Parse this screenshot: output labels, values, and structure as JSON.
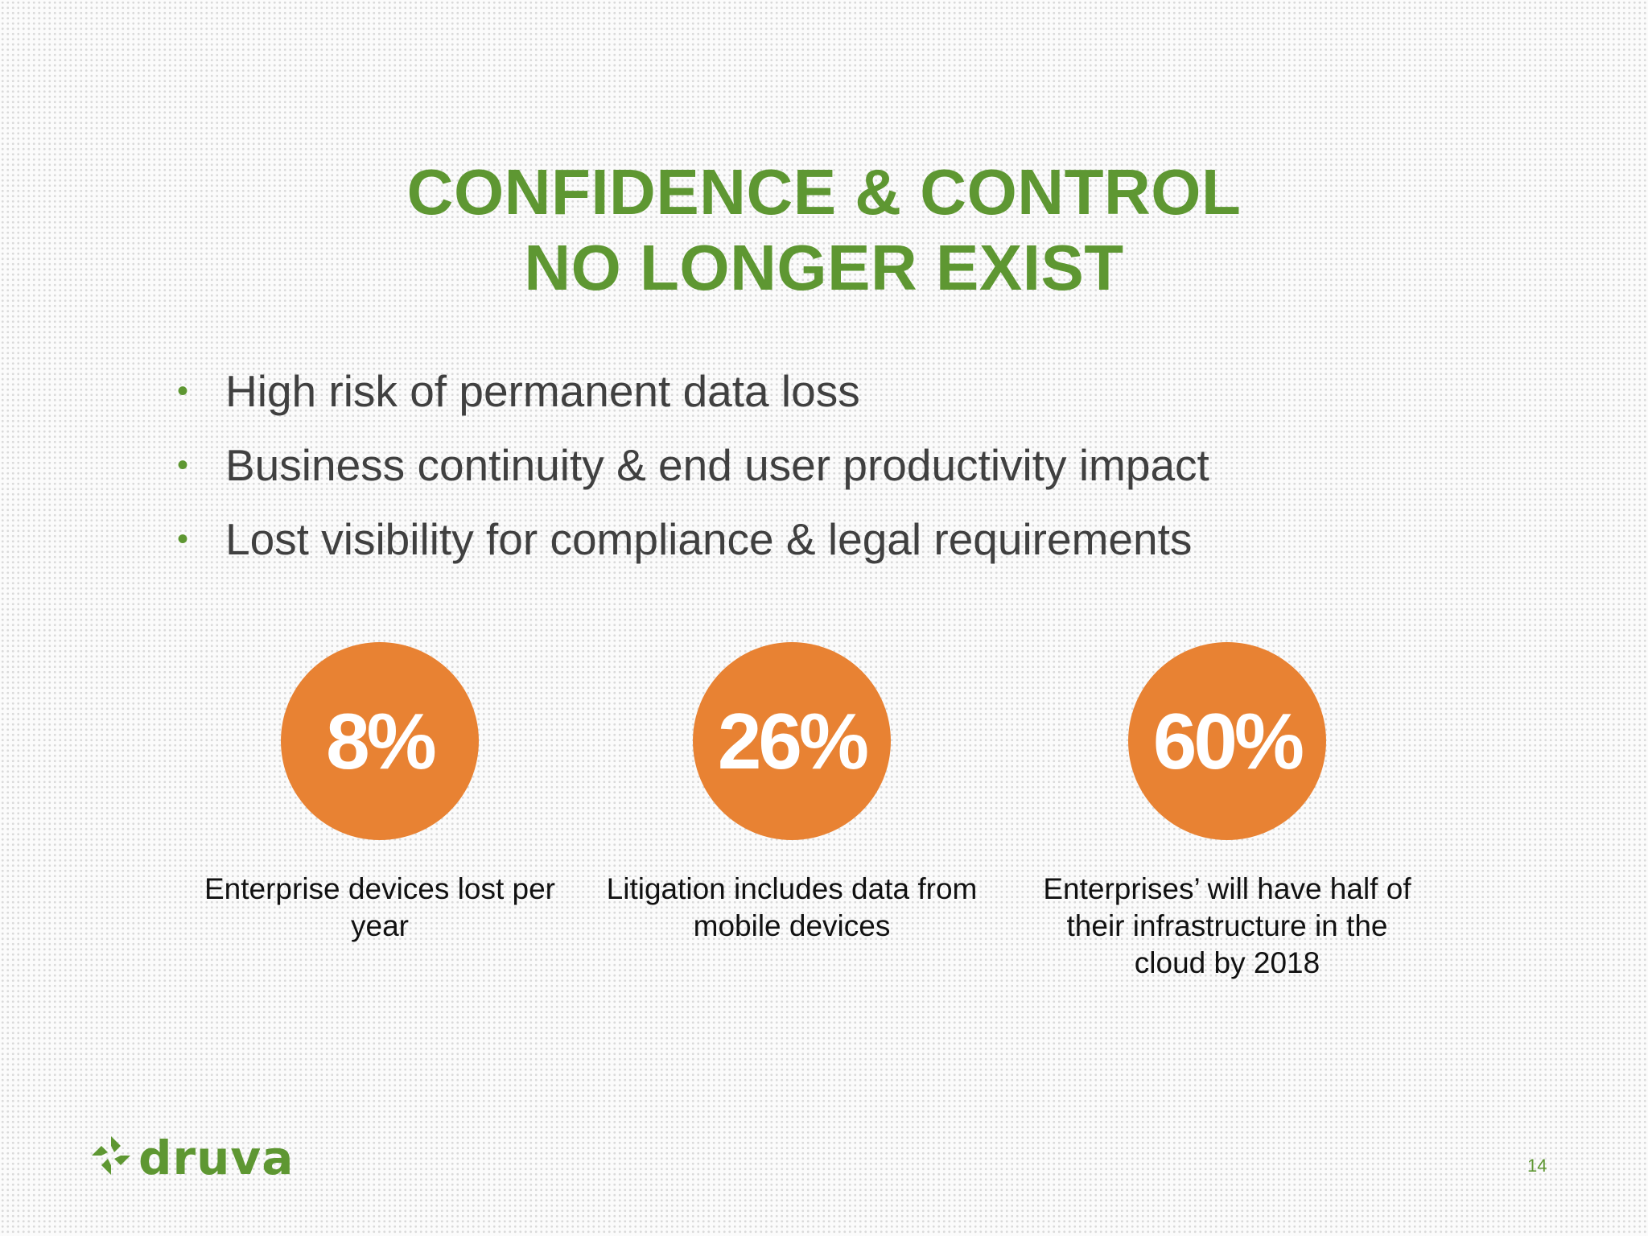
{
  "slide": {
    "title_line1": "CONFIDENCE & CONTROL",
    "title_line2": "NO LONGER EXIST",
    "bullets": [
      "High risk of permanent data loss",
      "Business continuity & end user productivity impact",
      "Lost visibility for compliance & legal requirements"
    ],
    "stats": [
      {
        "value": "8%",
        "caption": "Enterprise devices lost per year"
      },
      {
        "value": "26%",
        "caption": "Litigation includes data from mobile devices"
      },
      {
        "value": "60%",
        "caption": "Enterprises’ will have half of their infrastructure in the cloud by 2018"
      }
    ],
    "page_number": "14"
  },
  "brand": {
    "name": "druva",
    "logo_icon": "druva-pinwheel-icon"
  },
  "colors": {
    "accent_green": "#5e9732",
    "stat_orange": "#e88233",
    "body_text": "#404040"
  }
}
